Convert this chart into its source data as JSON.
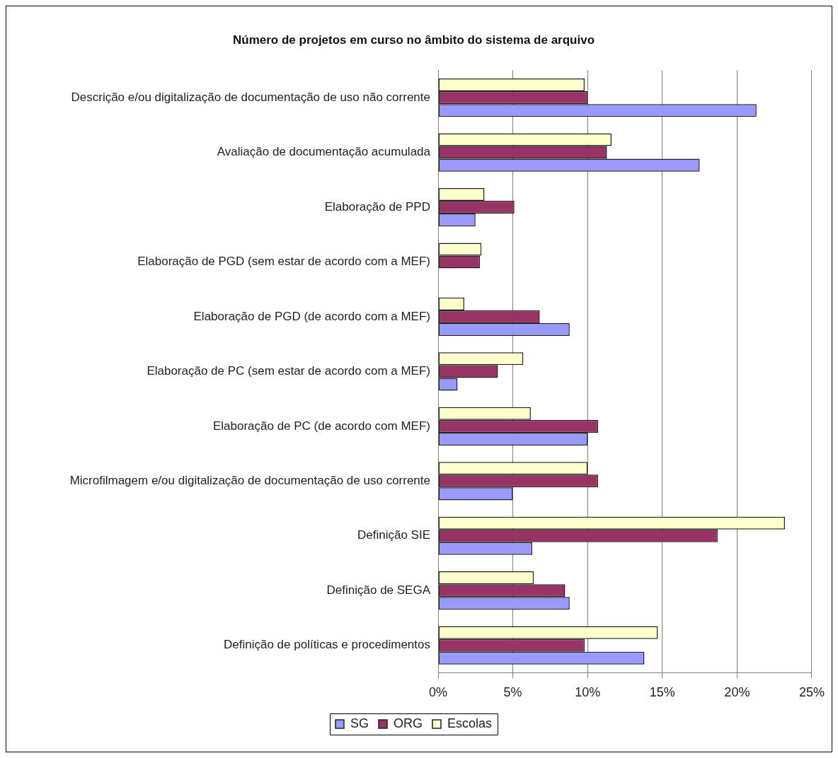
{
  "chart_data": {
    "type": "bar",
    "orientation": "horizontal",
    "title": "Número de projetos em curso no âmbito do sistema de arquivo",
    "categories": [
      "Descrição e/ou digitalização de documentação de uso não corrente",
      "Avaliação de documentação acumulada",
      "Elaboração de PPD",
      "Elaboração de PGD (sem estar de acordo com a MEF)",
      "Elaboração de PGD (de acordo com a MEF)",
      "Elaboração de PC (sem estar de acordo com a MEF)",
      "Elaboração de PC (de acordo com MEF)",
      "Microfilmagem e/ou digitalização de documentação de uso corrente",
      "Definição SIE",
      "Definição de SEGA",
      "Definição de políticas e procedimentos"
    ],
    "series": [
      {
        "name": "SG",
        "color": "#9999ff",
        "values": [
          21.3,
          17.5,
          2.5,
          0,
          8.8,
          1.3,
          10.0,
          5.0,
          6.3,
          8.8,
          13.8
        ]
      },
      {
        "name": "ORG",
        "color": "#993366",
        "values": [
          10.0,
          11.3,
          5.1,
          2.8,
          6.8,
          4.0,
          10.7,
          10.7,
          18.7,
          8.5,
          9.8
        ]
      },
      {
        "name": "Escolas",
        "color": "#ffffcc",
        "values": [
          9.8,
          11.6,
          3.1,
          2.9,
          1.75,
          5.7,
          6.2,
          10.0,
          23.2,
          6.4,
          14.7
        ]
      }
    ],
    "xlim": [
      0,
      25
    ],
    "xticks": [
      {
        "value": 0,
        "label": "0%"
      },
      {
        "value": 5,
        "label": "5%"
      },
      {
        "value": 10,
        "label": "10%"
      },
      {
        "value": 15,
        "label": "15%"
      },
      {
        "value": 20,
        "label": "20%"
      },
      {
        "value": 25,
        "label": "25%"
      }
    ],
    "grid": "x",
    "legend": "bottom"
  }
}
